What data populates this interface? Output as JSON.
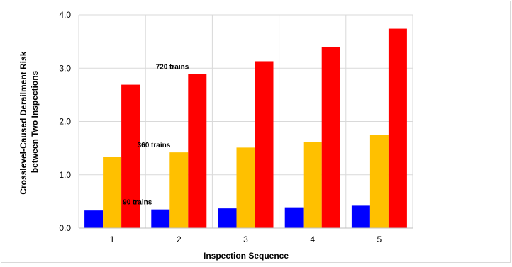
{
  "chart_data": {
    "type": "bar",
    "xlabel": "Inspection Sequence",
    "ylabel_lines": [
      "Crosslevel-Caused Derailment Risk",
      "between Two Inspections"
    ],
    "ylim": [
      0,
      4.0
    ],
    "yticks": [
      "0.0",
      "1.0",
      "2.0",
      "3.0",
      "4.0"
    ],
    "ytick_values": [
      0,
      1,
      2,
      3,
      4
    ],
    "categories": [
      "1",
      "2",
      "3",
      "4",
      "5"
    ],
    "grid": true,
    "legend": "none",
    "series": [
      {
        "color": "#0000ff",
        "values": [
          0.33,
          0.35,
          0.37,
          0.39,
          0.42
        ]
      },
      {
        "color": "#ffc000",
        "values": [
          1.34,
          1.42,
          1.51,
          1.62,
          1.75
        ]
      },
      {
        "color": "#ff0000",
        "values": [
          2.69,
          2.89,
          3.13,
          3.4,
          3.74
        ]
      }
    ],
    "annotations": [
      {
        "text": "90 trains",
        "series": 0,
        "category": 1
      },
      {
        "text": "360 trains",
        "series": 1,
        "category": 1
      },
      {
        "text": "720 trains",
        "series": 2,
        "category": 1
      }
    ]
  }
}
